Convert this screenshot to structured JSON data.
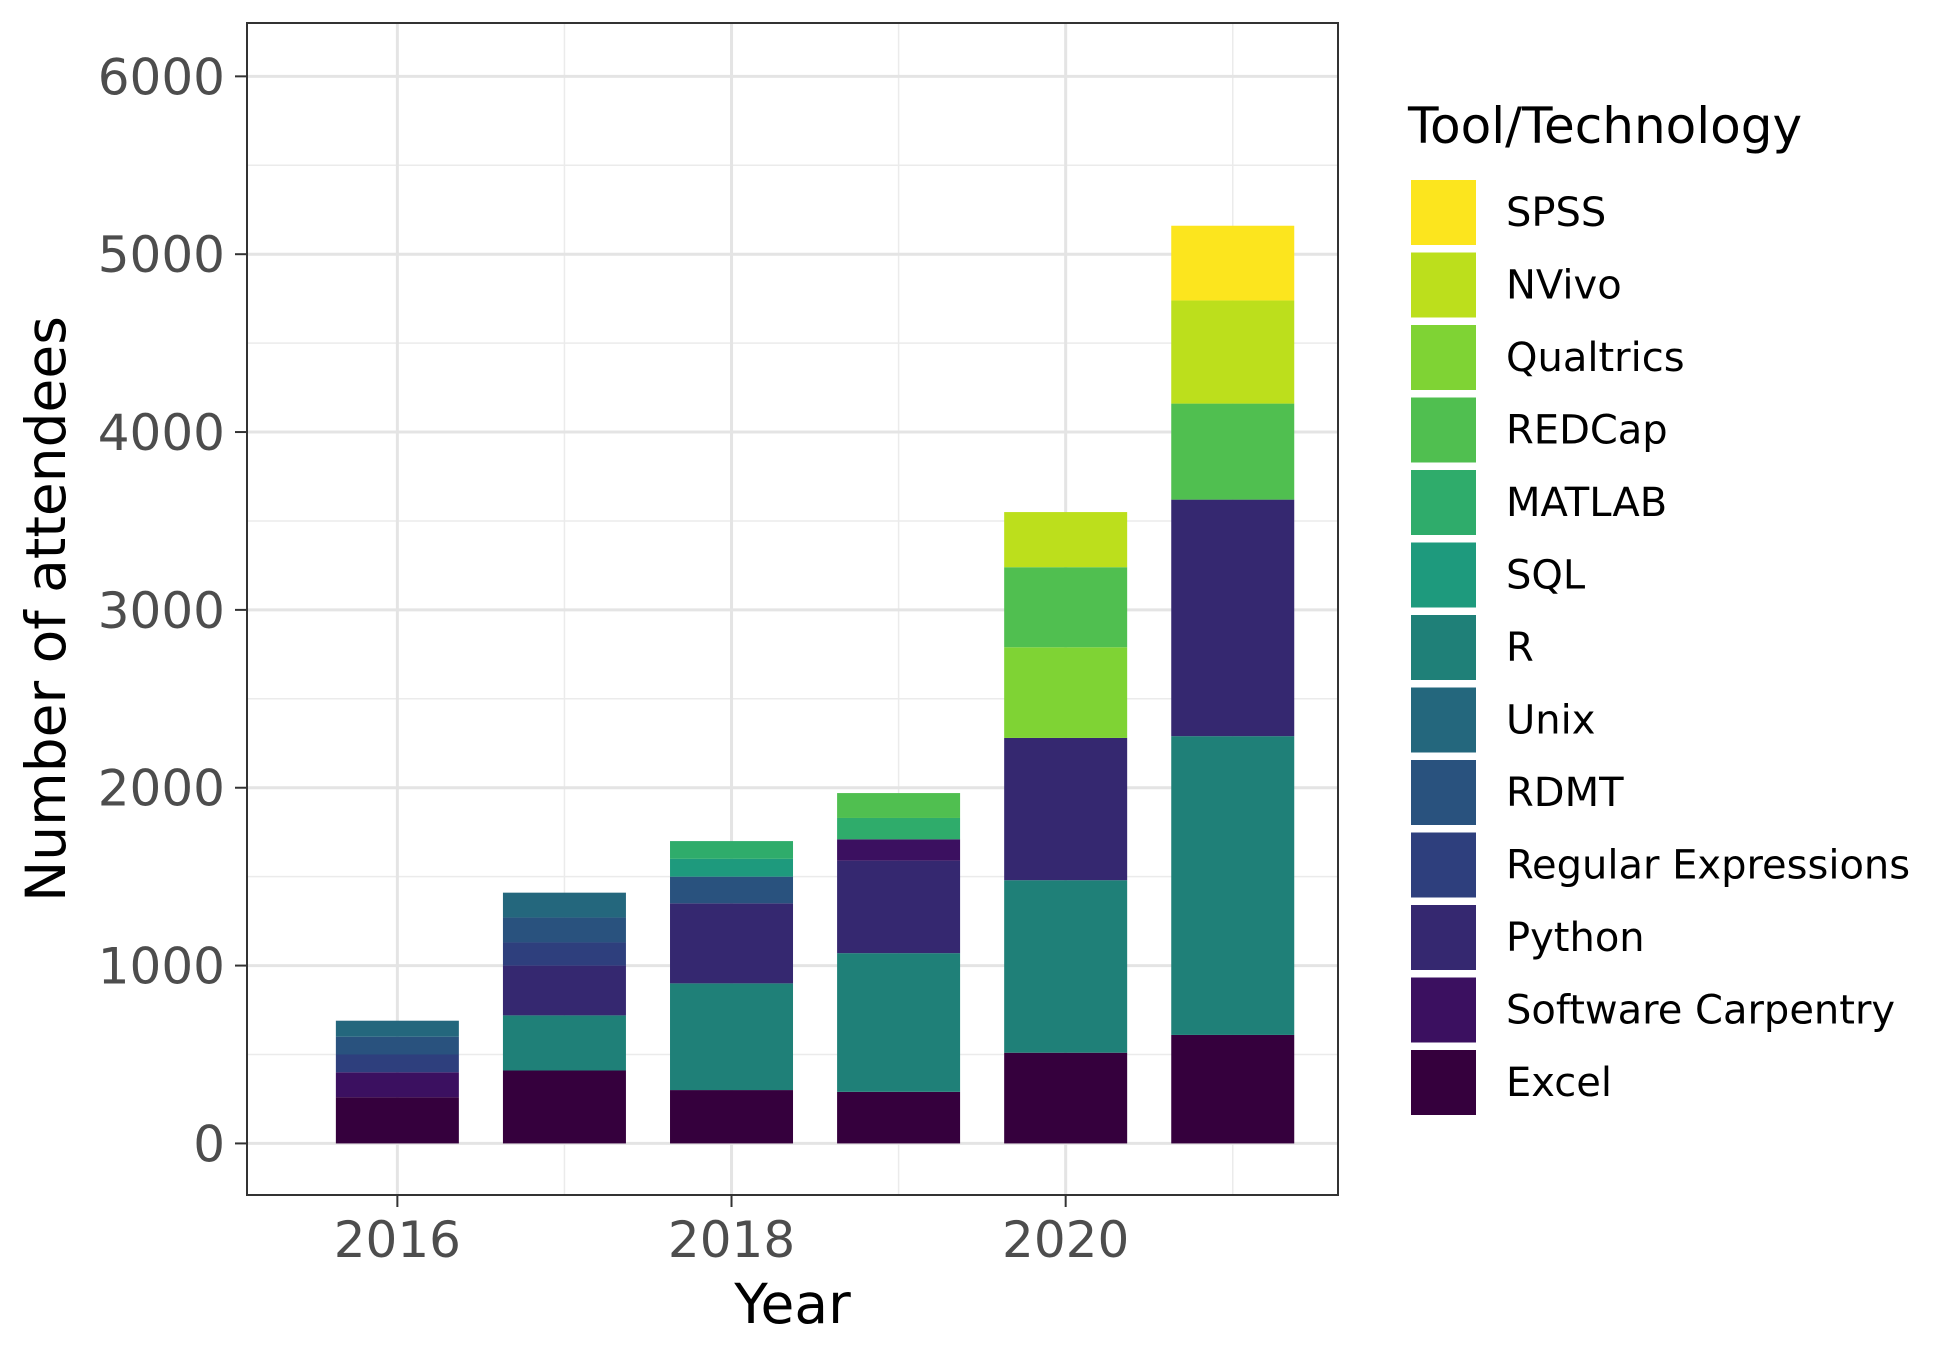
{
  "chart_data": {
    "type": "bar",
    "stacked": true,
    "title": "",
    "xlabel": "Year",
    "ylabel": "Number of attendees",
    "x": [
      2016,
      2017,
      2018,
      2019,
      2020,
      2021
    ],
    "x_tick_labels": [
      "2016",
      "2018",
      "2020"
    ],
    "x_ticks": [
      2016,
      2018,
      2020
    ],
    "y_ticks": [
      0,
      1000,
      2000,
      3000,
      4000,
      5000,
      6000
    ],
    "y_tick_labels": [
      "0",
      "1000",
      "2000",
      "3000",
      "4000",
      "5000",
      "6000"
    ],
    "xlim": [
      2015.1,
      2021.63
    ],
    "ylim": [
      -290,
      6300
    ],
    "grid": true,
    "legend_position": "right",
    "legend_title": "Tool/Technology",
    "series": [
      {
        "name": "Excel",
        "color": "#35003d",
        "values": [
          260,
          410,
          300,
          290,
          510,
          610
        ]
      },
      {
        "name": "R",
        "color": "#1f8078",
        "values": [
          0,
          310,
          600,
          780,
          970,
          1680
        ]
      },
      {
        "name": "Python",
        "color": "#352870",
        "values": [
          0,
          280,
          450,
          520,
          800,
          1330
        ]
      },
      {
        "name": "Software Carpentry",
        "color": "#3b1060",
        "values": [
          140,
          0,
          0,
          120,
          0,
          0
        ]
      },
      {
        "name": "Regular Expressions",
        "color": "#2e3f7d",
        "values": [
          100,
          130,
          0,
          0,
          0,
          0
        ]
      },
      {
        "name": "RDMT",
        "color": "#29527e",
        "values": [
          100,
          140,
          150,
          0,
          0,
          0
        ]
      },
      {
        "name": "Unix",
        "color": "#24677d",
        "values": [
          90,
          140,
          0,
          0,
          0,
          0
        ]
      },
      {
        "name": "Qualtrics",
        "color": "#7fd334",
        "values": [
          0,
          0,
          0,
          0,
          510,
          0
        ]
      },
      {
        "name": "SQL",
        "color": "#1e9a7d",
        "values": [
          0,
          0,
          100,
          0,
          0,
          0
        ]
      },
      {
        "name": "MATLAB",
        "color": "#2fac6b",
        "values": [
          0,
          0,
          100,
          120,
          0,
          0
        ]
      },
      {
        "name": "REDCap",
        "color": "#50bf50",
        "values": [
          0,
          0,
          0,
          140,
          450,
          540
        ]
      },
      {
        "name": "NVivo",
        "color": "#bcdf1c",
        "values": [
          0,
          0,
          0,
          0,
          310,
          580
        ]
      },
      {
        "name": "SPSS",
        "color": "#fce51e",
        "values": [
          0,
          0,
          0,
          0,
          0,
          420
        ]
      }
    ],
    "legend_order": [
      "SPSS",
      "NVivo",
      "Qualtrics",
      "REDCap",
      "MATLAB",
      "SQL",
      "R",
      "Unix",
      "RDMT",
      "Regular Expressions",
      "Python",
      "Software Carpentry",
      "Excel"
    ]
  }
}
